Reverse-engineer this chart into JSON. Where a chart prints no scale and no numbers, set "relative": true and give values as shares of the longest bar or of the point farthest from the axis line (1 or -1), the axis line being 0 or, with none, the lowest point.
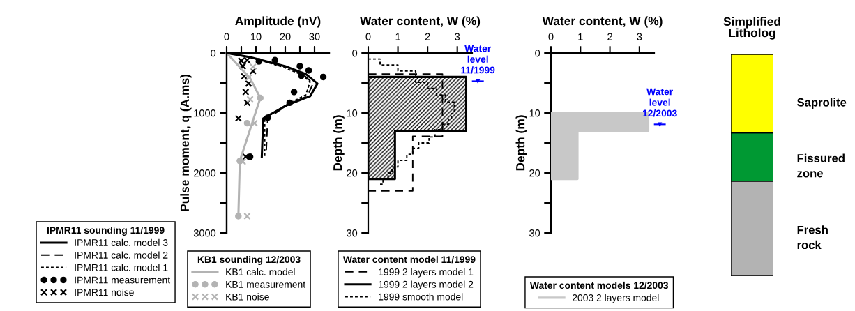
{
  "chart_data": [
    {
      "type": "line",
      "xlabel": "Amplitude (nV)",
      "ylabel": "Pulse moment, q (A.ms)",
      "xlim": [
        0,
        35
      ],
      "ylim": [
        3000,
        0
      ],
      "xticks": [
        0,
        {
          "value": 5,
          "label": null
        },
        10,
        {
          "value": 15,
          "label": null
        },
        20,
        {
          "value": 25,
          "label": null
        },
        30
      ],
      "yticks": [
        0,
        {
          "value": 500,
          "label": null
        },
        1000,
        {
          "value": 1500,
          "label": null
        },
        2000,
        {
          "value": 2500,
          "label": null
        },
        3000
      ],
      "legend": "bottom left",
      "legend_title": "IPMR11 sounding 11/1999",
      "series": [
        {
          "name": "IPMR11 calc. model 3",
          "color": "#000000",
          "type": "line",
          "line_style": "solid",
          "x": [
            0,
            8,
            20,
            27,
            31,
            28.5,
            21,
            12.5,
            12
          ],
          "values": [
            0,
            70,
            220,
            350,
            510,
            720,
            860,
            1090,
            1730
          ]
        },
        {
          "name": "IPMR11 calc. model 2",
          "color": "#000000",
          "type": "line",
          "line_style": "dashed",
          "x": [
            0,
            8,
            19.5,
            26,
            29.5,
            27.5,
            21,
            14,
            13.5
          ],
          "values": [
            0,
            70,
            220,
            350,
            510,
            720,
            860,
            1090,
            1670
          ]
        },
        {
          "name": "IPMR11 calc. model 1",
          "color": "#000000",
          "type": "line",
          "line_style": "dotted",
          "x": [
            0,
            8,
            19,
            25.5,
            28.5,
            27,
            20.5,
            13,
            13
          ],
          "values": [
            0,
            70,
            230,
            360,
            480,
            700,
            860,
            1090,
            1750
          ]
        },
        {
          "name": "IPMR11 measurement",
          "color": "#000000",
          "type": "scatter",
          "marker": "circle",
          "x": [
            16.5,
            11,
            25,
            28,
            25.5,
            33,
            23,
            21.5,
            14,
            8
          ],
          "values": [
            120,
            140,
            220,
            290,
            380,
            400,
            650,
            830,
            1080,
            1730
          ]
        },
        {
          "name": "IPMR11 noise",
          "color": "#000000",
          "type": "scatter",
          "marker": "cross",
          "x": [
            5,
            7,
            5.5,
            9,
            6,
            7.5,
            6.5,
            7,
            4,
            6.5
          ],
          "values": [
            130,
            120,
            220,
            300,
            390,
            510,
            650,
            830,
            1090,
            1730
          ]
        }
      ]
    },
    {
      "type": "line",
      "xlim": [
        0,
        35
      ],
      "ylim": [
        3000,
        0
      ],
      "tick_labels": false,
      "xticks": [
        0,
        {
          "value": 5,
          "label": null
        },
        10,
        {
          "value": 15,
          "label": null
        },
        20,
        {
          "value": 25,
          "label": null
        },
        30
      ],
      "yticks": [
        0,
        {
          "value": 500,
          "label": null
        },
        1000,
        {
          "value": 1500,
          "label": null
        },
        2000,
        {
          "value": 2500,
          "label": null
        },
        3000
      ],
      "legend": "bottom",
      "legend_title": "KB1 sounding 12/2003",
      "series": [
        {
          "name": "KB1 calc. model",
          "color": "#b3b3b3",
          "type": "line",
          "line_style": "solid",
          "x": [
            0,
            8,
            11.5,
            4.5,
            4
          ],
          "values": [
            0,
            420,
            750,
            1800,
            2720
          ]
        },
        {
          "name": "KB1 measurement",
          "color": "#b3b3b3",
          "type": "scatter",
          "marker": "circle",
          "x": [
            11.5,
            7,
            4.5,
            4
          ],
          "values": [
            750,
            1170,
            1800,
            2720
          ]
        },
        {
          "name": "KB1 noise",
          "color": "#b3b3b3",
          "type": "scatter",
          "marker": "cross",
          "x": [
            9,
            7.5,
            8,
            9.5,
            5.5,
            7
          ],
          "values": [
            230,
            410,
            770,
            1170,
            1810,
            2720
          ]
        }
      ]
    },
    {
      "type": "line",
      "xlabel": "Water content, W (%)",
      "ylabel": "Depth (m)",
      "xlim": [
        0,
        3.5
      ],
      "ylim": [
        30,
        0
      ],
      "xticks": [
        0,
        1,
        2,
        3
      ],
      "yticks": [
        0,
        {
          "value": 5,
          "label": null
        },
        10,
        {
          "value": 15,
          "label": null
        },
        20,
        {
          "value": 25,
          "label": null
        },
        30
      ],
      "legend": "bottom",
      "legend_title": "Water content model 11/1999",
      "ref_lines": [
        {
          "axis": "y",
          "value": 4.7,
          "label": "Water\nlevel\n11/1999",
          "color": "#0000ff"
        }
      ],
      "series": [
        {
          "name": "1999 2 layers model 1",
          "color": "#000000",
          "type": "line",
          "line_style": "dashed",
          "x": [
            0,
            2.5,
            2.5,
            1.5,
            1.5,
            0
          ],
          "values": [
            3.5,
            3.5,
            13.9,
            13.9,
            23,
            23
          ]
        },
        {
          "name": "1999 2 layers model 2",
          "color": "#000000",
          "type": "area",
          "line_style": "solid",
          "x": [
            0,
            3.3,
            3.3,
            0.9,
            0.9,
            0
          ],
          "values": [
            4,
            4,
            13,
            13,
            21,
            21
          ]
        },
        {
          "name": "1999 smooth model",
          "color": "#000000",
          "type": "line",
          "line_style": "dotted",
          "x": [
            0,
            0.4,
            0.4,
            1.0,
            1.0,
            1.6,
            1.6,
            2.0,
            2.0,
            2.3,
            2.3,
            2.6,
            2.6,
            2.9,
            2.9,
            2.8,
            2.8,
            2.7,
            2.7,
            2.5,
            2.5,
            2.25,
            2.25,
            2.05,
            2.05,
            1.7,
            1.7,
            1.5,
            1.5,
            1.3,
            1.3,
            1.0,
            1.0,
            0.8,
            0.8,
            0.67,
            0.67,
            0.5,
            0.5,
            0.4
          ],
          "values": [
            1,
            1,
            2,
            2,
            3,
            3,
            4.9,
            4.9,
            5.9,
            5.9,
            7,
            7,
            8.2,
            8.2,
            10.1,
            10.1,
            10.9,
            10.9,
            11.9,
            11.9,
            12.8,
            12.8,
            14,
            14,
            15,
            15,
            15.9,
            15.9,
            16.9,
            16.9,
            17.9,
            17.9,
            19,
            19,
            20,
            20,
            21,
            21,
            21.9,
            21.9
          ]
        }
      ]
    },
    {
      "type": "line",
      "xlabel": "Water content, W (%)",
      "ylabel": "Depth (m)",
      "xlim": [
        0,
        3.5
      ],
      "ylim": [
        30,
        0
      ],
      "xticks": [
        0,
        1,
        2,
        3
      ],
      "yticks": [
        0,
        {
          "value": 5,
          "label": null
        },
        10,
        {
          "value": 15,
          "label": null
        },
        20,
        {
          "value": 25,
          "label": null
        },
        30
      ],
      "legend": "bottom",
      "legend_title": "Water content models 12/2003",
      "ref_lines": [
        {
          "axis": "y",
          "value": 11.9,
          "label": "Water\nlevel\n12/2003",
          "color": "#0000ff"
        }
      ],
      "series": [
        {
          "name": "2003 2 layers model",
          "color": "#c8c8c8",
          "type": "area",
          "line_style": "solid",
          "x": [
            0,
            3.3,
            3.3,
            0.9,
            0.9,
            0
          ],
          "values": [
            10,
            10,
            13,
            13,
            21,
            21
          ]
        }
      ]
    },
    {
      "type": "bar",
      "title": "Simplified\nLitholog",
      "stacked": true,
      "relative": true,
      "categories": [
        null
      ],
      "series": [
        {
          "name": "Fresh\nrock",
          "color": "#b3b3b3",
          "values": [
            0.428
          ]
        },
        {
          "name": "Fissured\nzone",
          "color": "#009933",
          "values": [
            0.218
          ]
        },
        {
          "name": "Saprolite",
          "color": "#ffff00",
          "values": [
            0.354
          ]
        }
      ]
    }
  ]
}
